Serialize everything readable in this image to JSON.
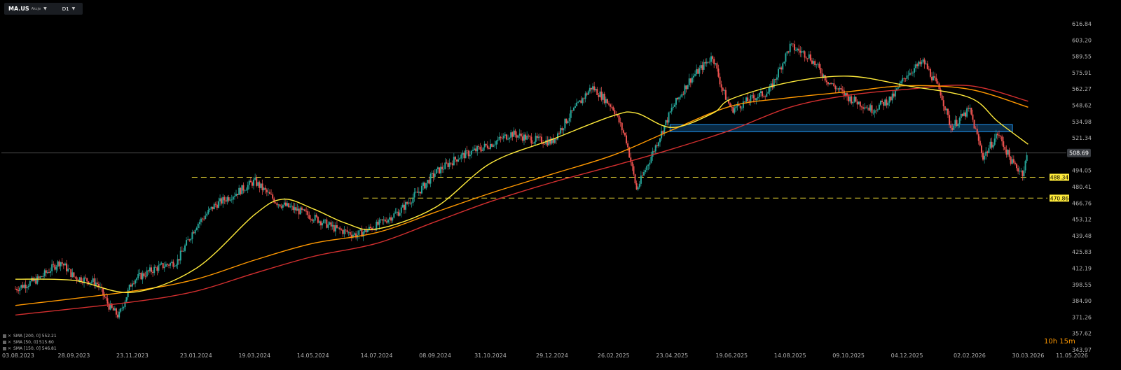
{
  "toolbar": {
    "symbol": "MA.US",
    "sub": "Akcje",
    "timeframe": "D1"
  },
  "legend": [
    {
      "label": "SMA [200, 0] 552.21"
    },
    {
      "label": "SMA [50, 0] 515.60"
    },
    {
      "label": "SMA [150, 0] 546.81"
    }
  ],
  "timer": "10h 15m",
  "colors": {
    "up": "#26a69a",
    "down": "#ef5350",
    "sma200": "#d32f2f",
    "sma150": "#ff9800",
    "sma50": "#ffeb3b",
    "level": "#ffeb3b",
    "zone": "#2196f3"
  },
  "chart_data": {
    "type": "candlestick",
    "y_ticks": [
      "616.84",
      "603.20",
      "589.55",
      "575.91",
      "562.27",
      "548.62",
      "534.98",
      "521.34",
      "508.69",
      "494.05",
      "480.41",
      "466.76",
      "453.12",
      "439.48",
      "425.83",
      "412.19",
      "398.55",
      "384.90",
      "371.26",
      "357.62",
      "343.97"
    ],
    "ylim": [
      343.97,
      616.84
    ],
    "x_ticks": [
      "03.08.2023",
      "28.09.2023",
      "23.11.2023",
      "23.01.2024",
      "19.03.2024",
      "14.05.2024",
      "14.07.2024",
      "08.09.2024",
      "31.10.2024",
      "29.12.2024",
      "26.02.2025",
      "23.04.2025",
      "19.06.2025",
      "14.08.2025",
      "09.10.2025",
      "04.12.2025",
      "02.02.2026",
      "30.03.2026",
      "11.05.2026"
    ],
    "last_price": "508.69",
    "last_value": 508.69,
    "levels": [
      {
        "value": 488.34,
        "label": "488.34"
      },
      {
        "value": 470.86,
        "label": "470.86"
      }
    ],
    "zone": {
      "from": "21.04.2025",
      "to": "15.03.2026",
      "low": 526.5,
      "high": 532.5
    },
    "price_path": [
      [
        "03.08.2023",
        395
      ],
      [
        "25.08.2023",
        403
      ],
      [
        "15.09.2023",
        418
      ],
      [
        "28.09.2023",
        405
      ],
      [
        "20.10.2023",
        400
      ],
      [
        "01.11.2023",
        380
      ],
      [
        "10.11.2023",
        372
      ],
      [
        "23.11.2023",
        402
      ],
      [
        "15.12.2023",
        412
      ],
      [
        "05.01.2024",
        418
      ],
      [
        "23.01.2024",
        448
      ],
      [
        "10.02.2024",
        465
      ],
      [
        "01.03.2024",
        475
      ],
      [
        "19.03.2024",
        485
      ],
      [
        "10.04.2024",
        467
      ],
      [
        "01.05.2024",
        460
      ],
      [
        "14.05.2024",
        455
      ],
      [
        "05.06.2024",
        445
      ],
      [
        "25.06.2024",
        440
      ],
      [
        "14.07.2024",
        448
      ],
      [
        "05.08.2024",
        460
      ],
      [
        "25.08.2024",
        478
      ],
      [
        "08.09.2024",
        492
      ],
      [
        "30.09.2024",
        505
      ],
      [
        "20.10.2024",
        512
      ],
      [
        "31.10.2024",
        516
      ],
      [
        "20.11.2024",
        525
      ],
      [
        "10.12.2024",
        520
      ],
      [
        "29.12.2024",
        518
      ],
      [
        "15.01.2025",
        540
      ],
      [
        "05.02.2025",
        564
      ],
      [
        "15.02.2025",
        556
      ],
      [
        "26.02.2025",
        546
      ],
      [
        "10.03.2025",
        520
      ],
      [
        "20.03.2025",
        478
      ],
      [
        "05.04.2025",
        510
      ],
      [
        "23.04.2025",
        546
      ],
      [
        "10.05.2025",
        570
      ],
      [
        "01.06.2025",
        590
      ],
      [
        "10.06.2025",
        562
      ],
      [
        "19.06.2025",
        545
      ],
      [
        "10.07.2025",
        555
      ],
      [
        "25.07.2025",
        560
      ],
      [
        "14.08.2025",
        598
      ],
      [
        "01.09.2025",
        590
      ],
      [
        "20.09.2025",
        568
      ],
      [
        "09.10.2025",
        555
      ],
      [
        "01.11.2025",
        545
      ],
      [
        "20.11.2025",
        555
      ],
      [
        "04.12.2025",
        575
      ],
      [
        "20.12.2025",
        585
      ],
      [
        "05.01.2026",
        560
      ],
      [
        "15.01.2026",
        530
      ],
      [
        "02.02.2026",
        545
      ],
      [
        "15.02.2026",
        505
      ],
      [
        "01.03.2026",
        525
      ],
      [
        "15.03.2026",
        500
      ],
      [
        "25.03.2026",
        492
      ],
      [
        "30.03.2026",
        510
      ]
    ],
    "sma50": [
      [
        "03.08.2023",
        403
      ],
      [
        "28.09.2023",
        402
      ],
      [
        "23.11.2023",
        392
      ],
      [
        "23.01.2024",
        412
      ],
      [
        "19.03.2024",
        457
      ],
      [
        "15.04.2024",
        470
      ],
      [
        "14.05.2024",
        462
      ],
      [
        "14.06.2024",
        450
      ],
      [
        "14.07.2024",
        445
      ],
      [
        "08.09.2024",
        463
      ],
      [
        "31.10.2024",
        500
      ],
      [
        "29.12.2024",
        520
      ],
      [
        "26.02.2025",
        540
      ],
      [
        "20.03.2025",
        542
      ],
      [
        "23.04.2025",
        530
      ],
      [
        "01.06.2025",
        542
      ],
      [
        "19.06.2025",
        554
      ],
      [
        "14.08.2025",
        568
      ],
      [
        "09.10.2025",
        573
      ],
      [
        "04.12.2025",
        565
      ],
      [
        "02.02.2026",
        555
      ],
      [
        "01.03.2026",
        535
      ],
      [
        "30.03.2026",
        516
      ]
    ],
    "sma150": [
      [
        "03.08.2023",
        381
      ],
      [
        "23.11.2023",
        393
      ],
      [
        "23.01.2024",
        403
      ],
      [
        "19.03.2024",
        419
      ],
      [
        "14.05.2024",
        433
      ],
      [
        "14.07.2024",
        442
      ],
      [
        "08.09.2024",
        459
      ],
      [
        "31.10.2024",
        475
      ],
      [
        "29.12.2024",
        491
      ],
      [
        "26.02.2025",
        507
      ],
      [
        "23.04.2025",
        528
      ],
      [
        "19.06.2025",
        548
      ],
      [
        "14.08.2025",
        555
      ],
      [
        "09.10.2025",
        560
      ],
      [
        "04.12.2025",
        565
      ],
      [
        "02.02.2026",
        562
      ],
      [
        "30.03.2026",
        547
      ]
    ],
    "sma200": [
      [
        "03.08.2023",
        373
      ],
      [
        "23.11.2023",
        384
      ],
      [
        "23.01.2024",
        393
      ],
      [
        "19.03.2024",
        408
      ],
      [
        "14.05.2024",
        422
      ],
      [
        "14.07.2024",
        433
      ],
      [
        "08.09.2024",
        451
      ],
      [
        "31.10.2024",
        468
      ],
      [
        "29.12.2024",
        484
      ],
      [
        "26.02.2025",
        498
      ],
      [
        "23.04.2025",
        512
      ],
      [
        "19.06.2025",
        528
      ],
      [
        "14.08.2025",
        547
      ],
      [
        "09.10.2025",
        557
      ],
      [
        "04.12.2025",
        562
      ],
      [
        "02.02.2026",
        565
      ],
      [
        "30.03.2026",
        552
      ]
    ]
  }
}
